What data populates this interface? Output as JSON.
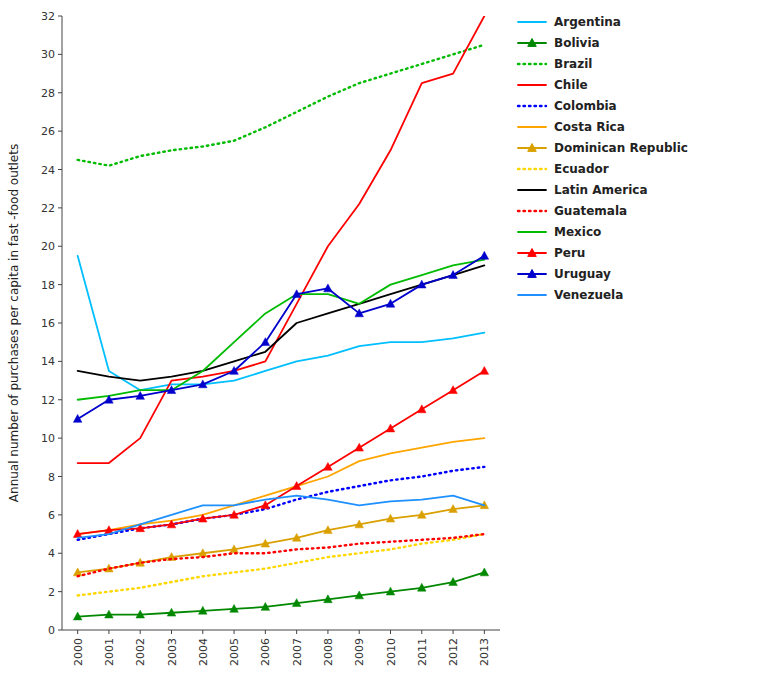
{
  "chart_data": {
    "type": "line",
    "ylabel": "Annual number of purchases per capita in fast -food outlets",
    "x": [
      2000,
      2001,
      2002,
      2003,
      2004,
      2005,
      2006,
      2007,
      2008,
      2009,
      2010,
      2011,
      2012,
      2013
    ],
    "xlim": [
      1999.5,
      2013.5
    ],
    "xticks": [
      2000,
      2001,
      2002,
      2003,
      2004,
      2005,
      2006,
      2007,
      2008,
      2009,
      2010,
      2011,
      2012,
      2013
    ],
    "ylim": [
      0,
      32
    ],
    "yticks": [
      0,
      2,
      4,
      6,
      8,
      10,
      12,
      14,
      16,
      18,
      20,
      22,
      24,
      26,
      28,
      30,
      32
    ],
    "grid": false,
    "legend": "right",
    "series": [
      {
        "name": "Argentina",
        "color": "#00BFFF",
        "line_style": "solid",
        "values": [
          19.5,
          13.5,
          12.5,
          12.8,
          12.8,
          13.0,
          13.5,
          14.0,
          14.3,
          14.8,
          15.0,
          15.0,
          15.2,
          15.5
        ]
      },
      {
        "name": "Bolivia",
        "color": "#008800",
        "line_style": "solid",
        "marker": "triangle",
        "values": [
          0.7,
          0.8,
          0.8,
          0.9,
          1.0,
          1.1,
          1.2,
          1.4,
          1.6,
          1.8,
          2.0,
          2.2,
          2.5,
          3.0
        ]
      },
      {
        "name": "Brazil",
        "color": "#00BB00",
        "line_style": "dotted",
        "values": [
          24.5,
          24.2,
          24.7,
          25.0,
          25.2,
          25.5,
          26.2,
          27.0,
          27.8,
          28.5,
          29.0,
          29.5,
          30.0,
          30.5
        ]
      },
      {
        "name": "Chile",
        "color": "#FF0000",
        "line_style": "solid",
        "values": [
          8.7,
          8.7,
          10.0,
          13.0,
          13.2,
          13.5,
          14.0,
          17.0,
          20.0,
          22.2,
          25.0,
          28.5,
          29.0,
          32.0
        ]
      },
      {
        "name": "Colombia",
        "color": "#0000FF",
        "line_style": "dotted",
        "values": [
          4.7,
          5.0,
          5.3,
          5.5,
          5.8,
          6.0,
          6.3,
          6.8,
          7.2,
          7.5,
          7.8,
          8.0,
          8.3,
          8.5
        ]
      },
      {
        "name": "Costa Rica",
        "color": "#FFA500",
        "line_style": "solid",
        "values": [
          5.0,
          5.2,
          5.5,
          5.7,
          6.0,
          6.5,
          7.0,
          7.5,
          8.0,
          8.8,
          9.2,
          9.5,
          9.8,
          10.0
        ]
      },
      {
        "name": "Dominican Republic",
        "color": "#DAA000",
        "line_style": "solid",
        "marker": "triangle",
        "values": [
          3.0,
          3.2,
          3.5,
          3.8,
          4.0,
          4.2,
          4.5,
          4.8,
          5.2,
          5.5,
          5.8,
          6.0,
          6.3,
          6.5
        ]
      },
      {
        "name": "Ecuador",
        "color": "#FFD700",
        "line_style": "dotted",
        "values": [
          1.8,
          2.0,
          2.2,
          2.5,
          2.8,
          3.0,
          3.2,
          3.5,
          3.8,
          4.0,
          4.2,
          4.5,
          4.7,
          5.0
        ]
      },
      {
        "name": "Latin America",
        "color": "#000000",
        "line_style": "solid",
        "values": [
          13.5,
          13.2,
          13.0,
          13.2,
          13.5,
          14.0,
          14.5,
          16.0,
          16.5,
          17.0,
          17.5,
          18.0,
          18.5,
          19.0
        ]
      },
      {
        "name": "Guatemala",
        "color": "#FF0000",
        "line_style": "dotted",
        "values": [
          2.8,
          3.2,
          3.5,
          3.7,
          3.8,
          4.0,
          4.0,
          4.2,
          4.3,
          4.5,
          4.6,
          4.7,
          4.8,
          5.0
        ]
      },
      {
        "name": "Mexico",
        "color": "#00BB00",
        "line_style": "solid",
        "values": [
          12.0,
          12.2,
          12.5,
          12.5,
          13.5,
          15.0,
          16.5,
          17.5,
          17.5,
          17.0,
          18.0,
          18.5,
          19.0,
          19.3
        ]
      },
      {
        "name": "Peru",
        "color": "#FF0000",
        "line_style": "solid",
        "marker": "triangle",
        "values": [
          5.0,
          5.2,
          5.3,
          5.5,
          5.8,
          6.0,
          6.5,
          7.5,
          8.5,
          9.5,
          10.5,
          11.5,
          12.5,
          13.5
        ]
      },
      {
        "name": "Uruguay",
        "color": "#0000CC",
        "line_style": "solid",
        "marker": "triangle",
        "values": [
          11.0,
          12.0,
          12.2,
          12.5,
          12.8,
          13.5,
          15.0,
          17.5,
          17.8,
          16.5,
          17.0,
          18.0,
          18.5,
          19.5
        ]
      },
      {
        "name": "Venezuela",
        "color": "#1E90FF",
        "line_style": "solid",
        "values": [
          4.8,
          5.0,
          5.5,
          6.0,
          6.5,
          6.5,
          6.8,
          7.0,
          6.8,
          6.5,
          6.7,
          6.8,
          7.0,
          6.5
        ]
      }
    ]
  }
}
